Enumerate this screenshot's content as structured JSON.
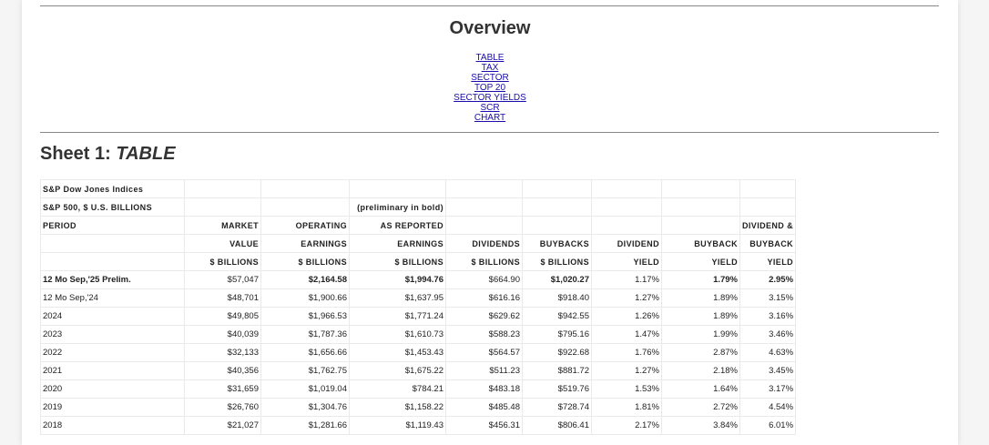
{
  "overview": {
    "title": "Overview",
    "links": [
      "TABLE",
      "TAX",
      "SECTOR",
      "TOP 20",
      "SECTOR YIELDS",
      "SCR",
      "CHART"
    ]
  },
  "sheet": {
    "prefix": "Sheet 1: ",
    "name": "TABLE"
  },
  "table": {
    "header": {
      "r1": "S&P Dow Jones Indices",
      "r2_left": "S&P 500, $ U.S. BILLIONS",
      "r2_note": "(preliminary in bold)",
      "r3": [
        "PERIOD",
        "MARKET",
        "OPERATING",
        "AS REPORTED",
        "",
        "",
        "",
        "",
        "DIVIDEND &"
      ],
      "r4": [
        "",
        "VALUE",
        "EARNINGS",
        "EARNINGS",
        "DIVIDENDS",
        "BUYBACKS",
        "DIVIDEND",
        "BUYBACK",
        "BUYBACK"
      ],
      "r5": [
        "",
        "$ BILLIONS",
        "$ BILLIONS",
        "$ BILLIONS",
        "$ BILLIONS",
        "$ BILLIONS",
        "YIELD",
        "YIELD",
        "YIELD"
      ]
    },
    "rows": [
      [
        "12 Mo Sep,'25 Prelim.",
        "$57,047",
        "$2,164.58",
        "$1,994.76",
        "$664.90",
        "$1,020.27",
        "1.17%",
        "1.79%",
        "2.95%"
      ],
      [
        "12 Mo Sep,'24",
        "$48,701",
        "$1,900.66",
        "$1,637.95",
        "$616.16",
        "$918.40",
        "1.27%",
        "1.89%",
        "3.15%"
      ],
      [
        "2024",
        "$49,805",
        "$1,966.53",
        "$1,771.24",
        "$629.62",
        "$942.55",
        "1.26%",
        "1.89%",
        "3.16%"
      ],
      [
        "2023",
        "$40,039",
        "$1,787.36",
        "$1,610.73",
        "$588.23",
        "$795.16",
        "1.47%",
        "1.99%",
        "3.46%"
      ],
      [
        "2022",
        "$32,133",
        "$1,656.66",
        "$1,453.43",
        "$564.57",
        "$922.68",
        "1.76%",
        "2.87%",
        "4.63%"
      ],
      [
        "2021",
        "$40,356",
        "$1,762.75",
        "$1,675.22",
        "$511.23",
        "$881.72",
        "1.27%",
        "2.18%",
        "3.45%"
      ],
      [
        "2020",
        "$31,659",
        "$1,019.04",
        "$784.21",
        "$483.18",
        "$519.76",
        "1.53%",
        "1.64%",
        "3.17%"
      ],
      [
        "2019",
        "$26,760",
        "$1,304.76",
        "$1,158.22",
        "$485.48",
        "$728.74",
        "1.81%",
        "2.72%",
        "4.54%"
      ],
      [
        "2018",
        "$21,027",
        "$1,281.66",
        "$1,119.43",
        "$456.31",
        "$806.41",
        "2.17%",
        "3.84%",
        "6.01%"
      ]
    ]
  }
}
